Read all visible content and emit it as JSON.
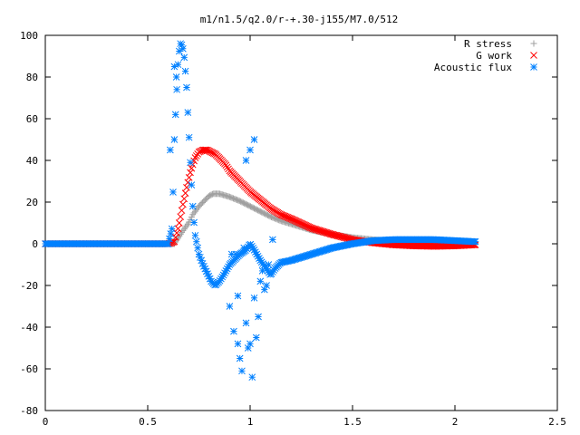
{
  "chart_data": {
    "type": "scatter",
    "title": "m1/n1.5/q2.0/r-+.30-j155/M7.0/512",
    "xlabel": "",
    "ylabel": "",
    "xlim": [
      0,
      2.5
    ],
    "ylim": [
      -80,
      100
    ],
    "xticks": [
      "0",
      "0.5",
      "1",
      "1.5",
      "2",
      "2.5"
    ],
    "xtick_values": [
      0,
      0.5,
      1,
      1.5,
      2,
      2.5
    ],
    "yticks": [
      "-80",
      "-60",
      "-40",
      "-20",
      "0",
      "20",
      "40",
      "60",
      "80",
      "100"
    ],
    "ytick_values": [
      -80,
      -60,
      -40,
      -20,
      0,
      20,
      40,
      60,
      80,
      100
    ],
    "grid": false,
    "legend_position": "top-right",
    "series": [
      {
        "name": "R stress",
        "marker": "plus",
        "color": "#a0a0a0",
        "x": [
          0.0,
          0.1,
          0.2,
          0.3,
          0.4,
          0.5,
          0.6,
          0.63,
          0.65,
          0.67,
          0.7,
          0.72,
          0.75,
          0.78,
          0.8,
          0.82,
          0.85,
          0.9,
          0.95,
          1.0,
          1.05,
          1.1,
          1.15,
          1.2,
          1.3,
          1.4,
          1.5,
          1.6,
          1.7,
          1.8,
          1.9,
          2.0,
          2.1
        ],
        "y": [
          0,
          0,
          0,
          0,
          0,
          0,
          0,
          0,
          3,
          6,
          10,
          14,
          18,
          21,
          23,
          24,
          24,
          22.5,
          20.5,
          18,
          15.5,
          13,
          11,
          9.5,
          6.5,
          4.5,
          3,
          2,
          1.3,
          0.8,
          0.5,
          0.3,
          0.2
        ]
      },
      {
        "name": "G work",
        "marker": "cross",
        "color": "#ff0000",
        "x": [
          0.0,
          0.1,
          0.2,
          0.3,
          0.4,
          0.5,
          0.6,
          0.63,
          0.65,
          0.67,
          0.69,
          0.71,
          0.73,
          0.75,
          0.77,
          0.79,
          0.81,
          0.83,
          0.85,
          0.88,
          0.9,
          0.95,
          1.0,
          1.05,
          1.1,
          1.15,
          1.2,
          1.3,
          1.4,
          1.5,
          1.6,
          1.7,
          1.8,
          1.9,
          2.0,
          2.1
        ],
        "y": [
          0,
          0,
          0,
          0,
          0,
          0,
          0,
          1,
          8,
          18,
          27,
          35,
          41,
          44,
          45,
          45,
          44,
          43,
          41,
          38,
          35,
          30,
          25,
          21,
          17,
          14,
          12,
          7.5,
          4.5,
          2,
          0.5,
          -0.5,
          -1,
          -1.2,
          -1,
          -0.5
        ]
      },
      {
        "name": "Acoustic flux",
        "marker": "star",
        "color": "#0080ff",
        "x": [
          0.0,
          0.1,
          0.2,
          0.3,
          0.4,
          0.5,
          0.6,
          0.62,
          0.63,
          0.64,
          0.65,
          0.66,
          0.67,
          0.68,
          0.69,
          0.7,
          0.71,
          0.72,
          0.73,
          0.75,
          0.77,
          0.79,
          0.81,
          0.83,
          0.85,
          0.87,
          0.9,
          0.92,
          0.95,
          0.98,
          1.0,
          1.02,
          1.05,
          1.08,
          1.1,
          1.12,
          1.15,
          1.2,
          1.3,
          1.4,
          1.5,
          1.6,
          1.7,
          1.8,
          1.9,
          2.0,
          2.1,
          0.61,
          0.63,
          0.64,
          0.9,
          0.92,
          0.94,
          0.95,
          0.96,
          0.98,
          0.99,
          1.0,
          1.01,
          1.02,
          1.03,
          1.04,
          1.05,
          1.06,
          1.08,
          0.91,
          0.93,
          0.97,
          1.02,
          1.0,
          0.98,
          0.94,
          1.07,
          1.09,
          1.11
        ],
        "y": [
          0,
          0,
          0,
          0,
          0,
          0,
          0,
          8,
          50,
          70,
          90,
          96,
          95,
          88,
          75,
          55,
          35,
          18,
          5,
          -5,
          -10,
          -14,
          -18,
          -20,
          -18,
          -15,
          -10,
          -8,
          -5,
          -3,
          0,
          -3,
          -8,
          -12,
          -15,
          -12,
          -9,
          -8,
          -5,
          -2,
          0,
          1.5,
          2,
          2,
          2,
          1.5,
          1,
          45,
          85,
          80,
          -30,
          -42,
          -48,
          -55,
          -61,
          -38,
          -50,
          -48,
          -64,
          -26,
          -45,
          -35,
          -18,
          -13,
          -20,
          -5,
          -5,
          -2,
          50,
          45,
          40,
          -25,
          -22,
          -10,
          2
        ]
      }
    ]
  }
}
